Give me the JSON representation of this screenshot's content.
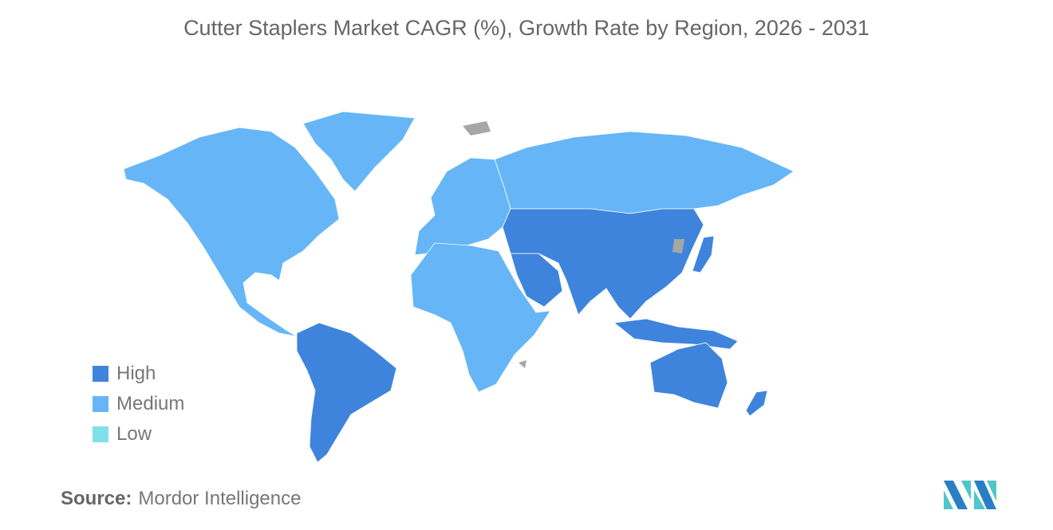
{
  "title": "Cutter Staplers Market CAGR (%), Growth Rate by Region, 2026 - 2031",
  "legend": [
    {
      "label": "High",
      "color": "#3e84dc"
    },
    {
      "label": "Medium",
      "color": "#66b6f7"
    },
    {
      "label": "Low",
      "color": "#7fe0ea"
    }
  ],
  "no_data_color": "#a6a6a6",
  "regions": [
    {
      "name": "North America",
      "level": "Medium"
    },
    {
      "name": "Greenland",
      "level": "Medium"
    },
    {
      "name": "South America",
      "level": "High"
    },
    {
      "name": "Europe",
      "level": "Medium"
    },
    {
      "name": "Russia",
      "level": "Medium"
    },
    {
      "name": "Africa",
      "level": "Medium"
    },
    {
      "name": "Middle East",
      "level": "High"
    },
    {
      "name": "Asia",
      "level": "High"
    },
    {
      "name": "Japan",
      "level": "High"
    },
    {
      "name": "Southeast Asia",
      "level": "High"
    },
    {
      "name": "Australia",
      "level": "High"
    },
    {
      "name": "New Zealand",
      "level": "High"
    }
  ],
  "source": {
    "label": "Source:",
    "value": "Mordor Intelligence"
  }
}
